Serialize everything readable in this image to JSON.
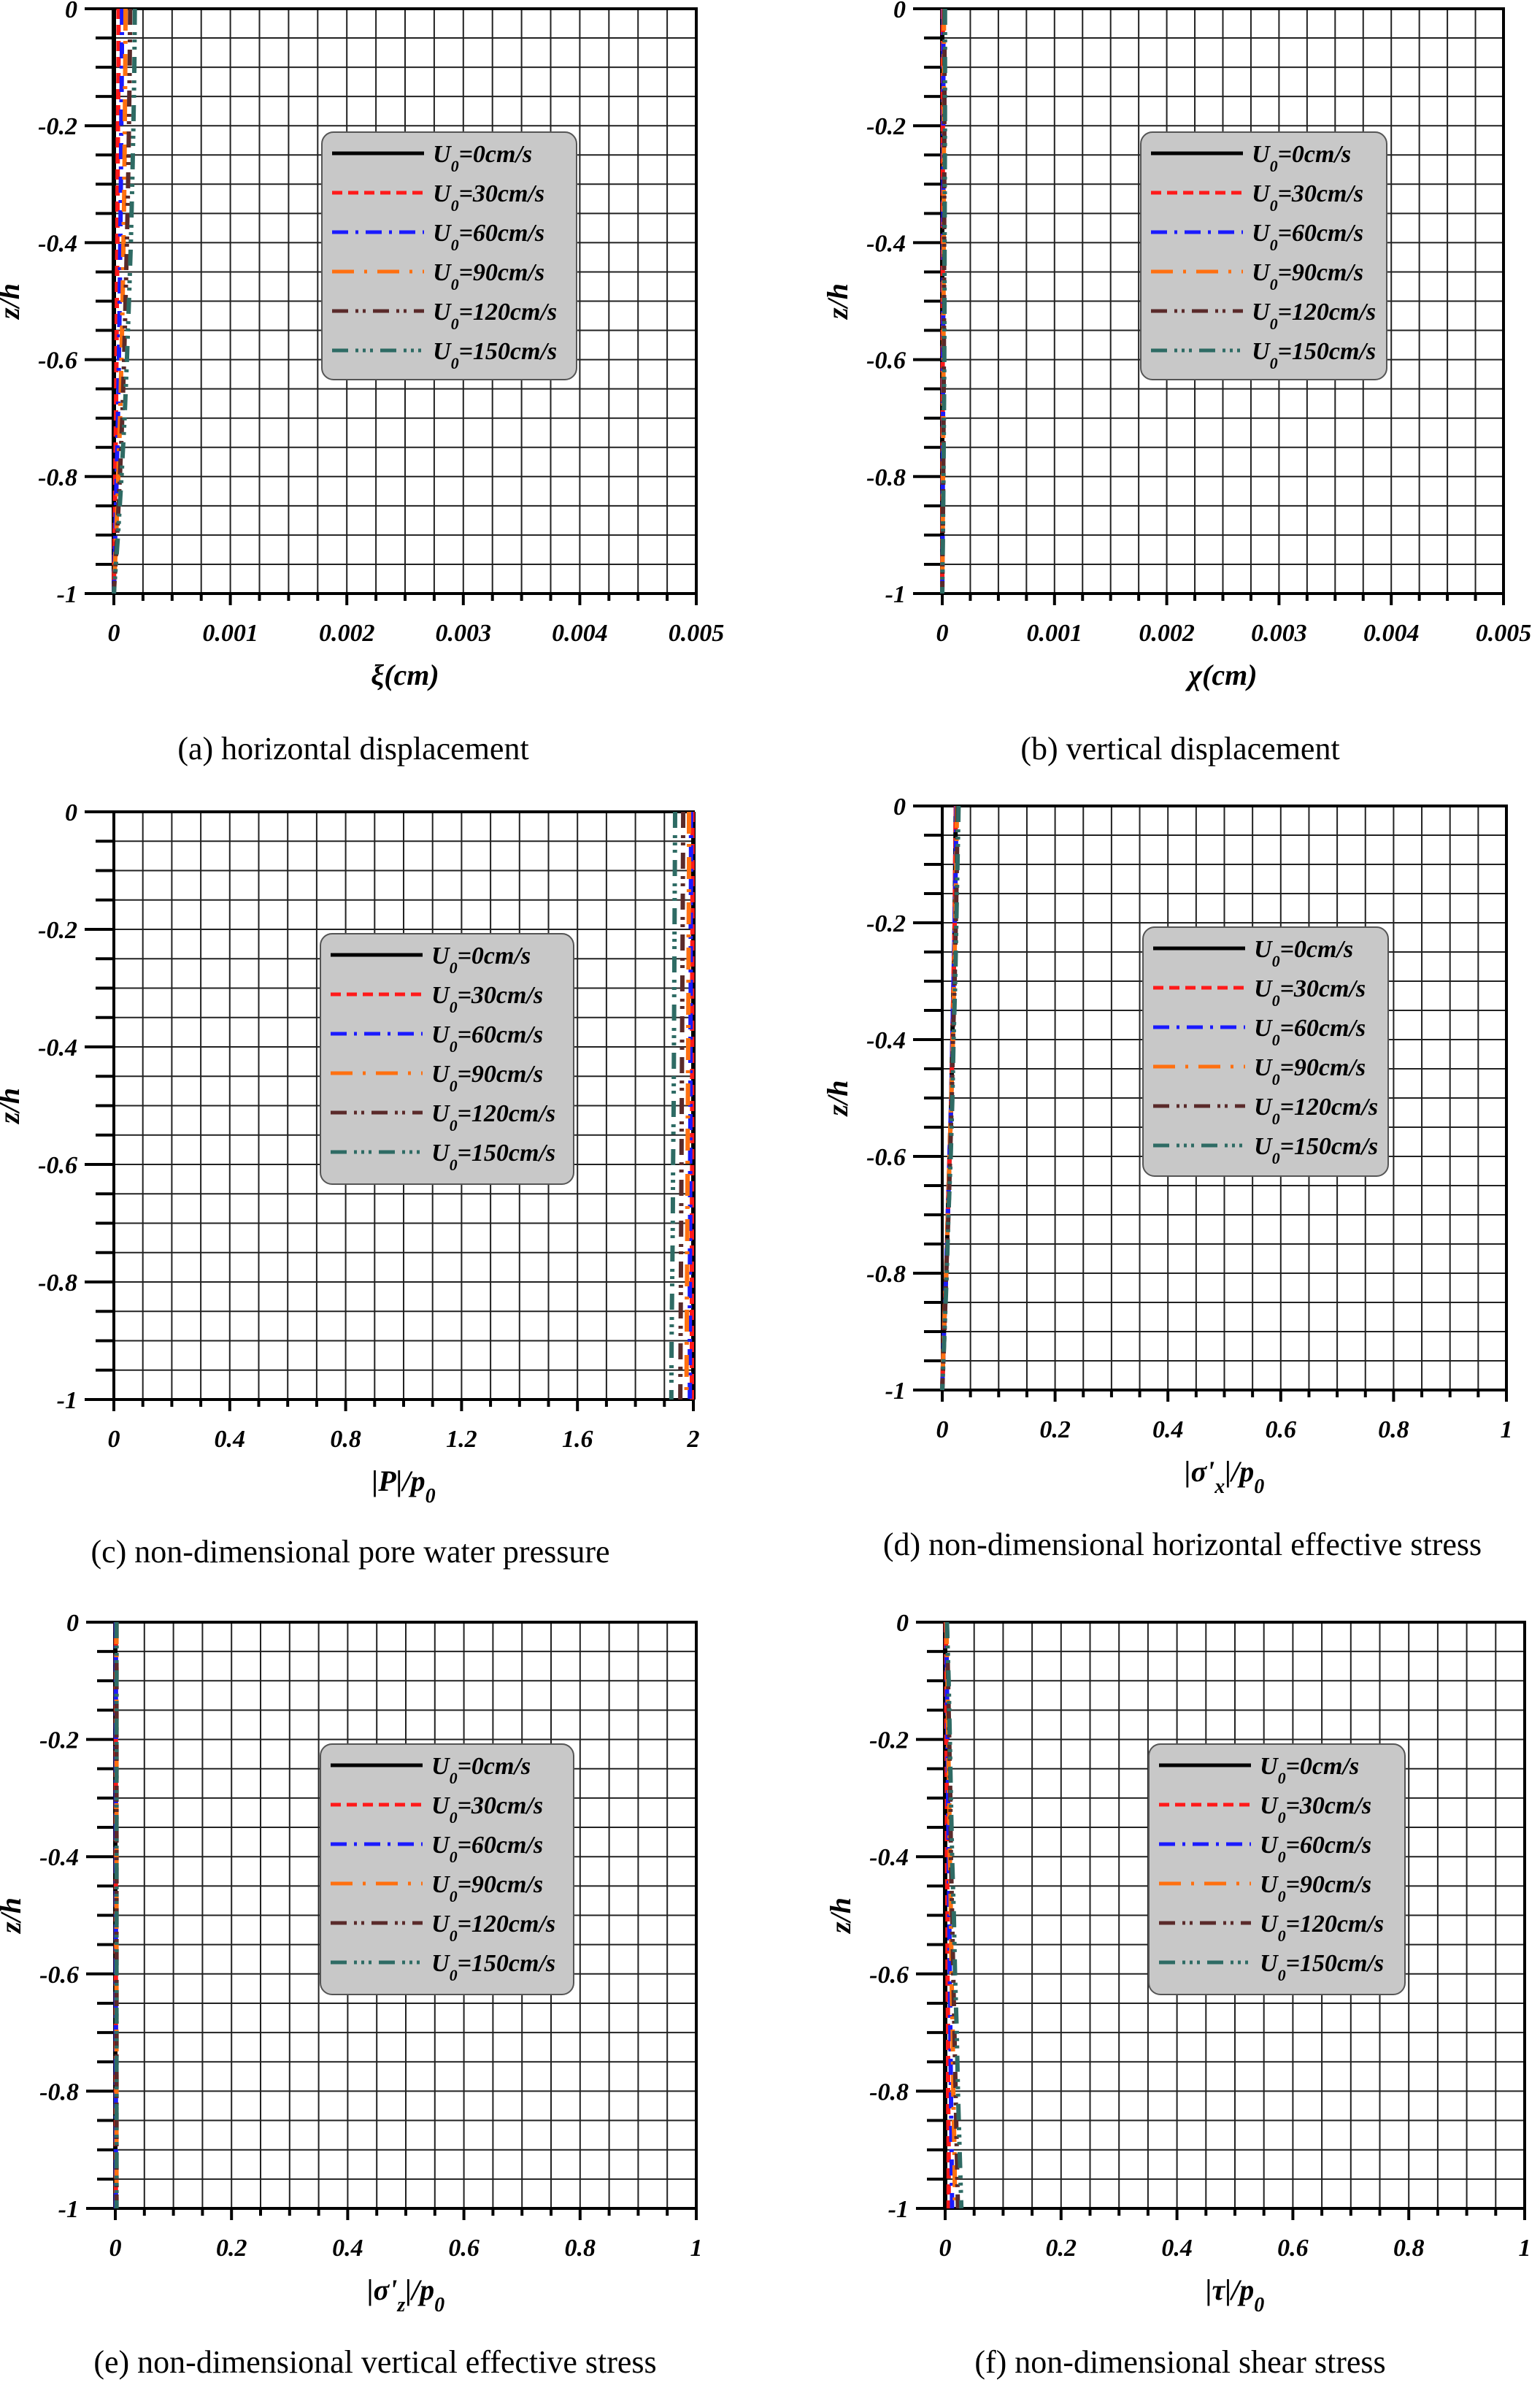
{
  "chart_data": [
    {
      "type": "line",
      "caption": "(a) horizontal displacement",
      "xlabel": [
        {
          "t": "ξ",
          "sub": false
        },
        {
          "t": "(cm)",
          "sub": false
        }
      ],
      "ylabel": "z/h",
      "xlim": [
        0,
        0.005
      ],
      "ylim": [
        -1,
        0
      ],
      "xticks": [
        "0",
        "0.001",
        "0.002",
        "0.003",
        "0.004",
        "0.005"
      ],
      "yticks": [
        "0",
        "-0.2",
        "-0.4",
        "-0.6",
        "-0.8",
        "-1"
      ],
      "grid": true,
      "legend": "upper-center",
      "z": [
        0,
        -0.1,
        -0.2,
        -0.3,
        -0.4,
        -0.5,
        -0.6,
        -0.7,
        -0.8,
        -0.9,
        -1
      ],
      "series": [
        {
          "name": "U0=0cm/s",
          "values": [
            0,
            0,
            0,
            0,
            0,
            0,
            0,
            0,
            0,
            0,
            0
          ]
        },
        {
          "name": "U0=30cm/s",
          "values": [
            4e-05,
            4e-05,
            3.5e-05,
            3.2e-05,
            3e-05,
            2.6e-05,
            2.2e-05,
            1.8e-05,
            1.2e-05,
            6e-06,
            0
          ]
        },
        {
          "name": "U0=60cm/s",
          "values": [
            7e-05,
            6.8e-05,
            6.4e-05,
            6e-05,
            5.5e-05,
            5e-05,
            4.3e-05,
            3.5e-05,
            2.4e-05,
            1.2e-05,
            0
          ]
        },
        {
          "name": "U0=90cm/s",
          "values": [
            0.0001,
            9.8e-05,
            9.4e-05,
            9e-05,
            8.3e-05,
            7.5e-05,
            6.5e-05,
            5.3e-05,
            3.8e-05,
            2e-05,
            0
          ]
        },
        {
          "name": "U0=120cm/s",
          "values": [
            0.00014,
            0.000136,
            0.00013,
            0.000122,
            0.000112,
            0.0001,
            8.8e-05,
            7.2e-05,
            5.2e-05,
            2.8e-05,
            0
          ]
        },
        {
          "name": "U0=150cm/s",
          "values": [
            0.00018,
            0.000176,
            0.000168,
            0.000158,
            0.000146,
            0.00013,
            0.000112,
            9.2e-05,
            6.6e-05,
            3.6e-05,
            0
          ]
        }
      ]
    },
    {
      "type": "line",
      "caption": "(b) vertical displacement",
      "xlabel": [
        {
          "t": "χ",
          "sub": false
        },
        {
          "t": "(cm)",
          "sub": false
        }
      ],
      "ylabel": "z/h",
      "xlim": [
        0,
        0.005
      ],
      "ylim": [
        -1,
        0
      ],
      "xticks": [
        "0",
        "0.001",
        "0.002",
        "0.003",
        "0.004",
        "0.005"
      ],
      "yticks": [
        "0",
        "-0.2",
        "-0.4",
        "-0.6",
        "-0.8",
        "-1"
      ],
      "grid": true,
      "legend": "upper-center",
      "z": [
        0,
        -0.1,
        -0.2,
        -0.3,
        -0.4,
        -0.5,
        -0.6,
        -0.7,
        -0.8,
        -0.9,
        -1
      ],
      "series": [
        {
          "name": "U0=0cm/s",
          "values": [
            0,
            0,
            0,
            0,
            0,
            0,
            0,
            0,
            0,
            0,
            0
          ]
        },
        {
          "name": "U0=30cm/s",
          "values": [
            5e-06,
            5e-06,
            5e-06,
            5e-06,
            5e-06,
            4e-06,
            4e-06,
            4e-06,
            3e-06,
            2e-06,
            0
          ]
        },
        {
          "name": "U0=60cm/s",
          "values": [
            1e-05,
            1e-05,
            1e-05,
            1e-05,
            9e-06,
            9e-06,
            8e-06,
            7e-06,
            5e-06,
            3e-06,
            0
          ]
        },
        {
          "name": "U0=90cm/s",
          "values": [
            1.5e-05,
            1.5e-05,
            1.4e-05,
            1.4e-05,
            1.3e-05,
            1.2e-05,
            1.1e-05,
            9e-06,
            7e-06,
            4e-06,
            0
          ]
        },
        {
          "name": "U0=120cm/s",
          "values": [
            2e-05,
            2e-05,
            1.9e-05,
            1.8e-05,
            1.7e-05,
            1.6e-05,
            1.4e-05,
            1.2e-05,
            9e-06,
            5e-06,
            0
          ]
        },
        {
          "name": "U0=150cm/s",
          "values": [
            2.5e-05,
            2.5e-05,
            2.4e-05,
            2.3e-05,
            2.1e-05,
            2e-05,
            1.8e-05,
            1.5e-05,
            1.1e-05,
            6e-06,
            0
          ]
        }
      ]
    },
    {
      "type": "line",
      "caption": "(c) non-dimensional pore water pressure",
      "xlabel": [
        {
          "t": "|P|/p",
          "sub": false
        },
        {
          "t": "0",
          "sub": true
        }
      ],
      "ylabel": "z/h",
      "xlim": [
        0,
        2
      ],
      "ylim": [
        -1,
        0
      ],
      "xticks": [
        "0",
        "0.4",
        "0.8",
        "1.2",
        "1.6",
        "2"
      ],
      "yticks": [
        "0",
        "-0.2",
        "-0.4",
        "-0.6",
        "-0.8",
        "-1"
      ],
      "grid": true,
      "legend": "upper-center",
      "z": [
        0,
        -0.1,
        -0.2,
        -0.3,
        -0.4,
        -0.5,
        -0.6,
        -0.7,
        -0.8,
        -0.9,
        -1
      ],
      "series": [
        {
          "name": "U0=0cm/s",
          "values": [
            2,
            2,
            2,
            2,
            2,
            2,
            2,
            2,
            2,
            2,
            2
          ]
        },
        {
          "name": "U0=30cm/s",
          "values": [
            1.997,
            1.997,
            1.997,
            1.996,
            1.996,
            1.996,
            1.996,
            1.995,
            1.995,
            1.995,
            1.995
          ]
        },
        {
          "name": "U0=60cm/s",
          "values": [
            1.992,
            1.992,
            1.991,
            1.991,
            1.99,
            1.99,
            1.989,
            1.989,
            1.988,
            1.988,
            1.988
          ]
        },
        {
          "name": "U0=90cm/s",
          "values": [
            1.985,
            1.985,
            1.984,
            1.983,
            1.982,
            1.981,
            1.98,
            1.979,
            1.978,
            1.977,
            1.976
          ]
        },
        {
          "name": "U0=120cm/s",
          "values": [
            1.965,
            1.964,
            1.963,
            1.962,
            1.961,
            1.96,
            1.959,
            1.958,
            1.957,
            1.956,
            1.955
          ]
        },
        {
          "name": "U0=150cm/s",
          "values": [
            1.937,
            1.936,
            1.935,
            1.934,
            1.933,
            1.932,
            1.93,
            1.929,
            1.927,
            1.925,
            1.924
          ]
        }
      ]
    },
    {
      "type": "line",
      "caption": "(d) non-dimensional horizontal effective stress",
      "xlabel": [
        {
          "t": "|σ'",
          "sub": false
        },
        {
          "t": "x",
          "sub": true
        },
        {
          "t": "|/p",
          "sub": false
        },
        {
          "t": "0",
          "sub": true
        }
      ],
      "ylabel": "z/h",
      "xlim": [
        0,
        1
      ],
      "ylim": [
        -1,
        0
      ],
      "xticks": [
        "0",
        "0.2",
        "0.4",
        "0.6",
        "0.8",
        "1"
      ],
      "yticks": [
        "0",
        "-0.2",
        "-0.4",
        "-0.6",
        "-0.8",
        "-1"
      ],
      "grid": true,
      "legend": "upper-center",
      "z": [
        0,
        -0.1,
        -0.2,
        -0.3,
        -0.4,
        -0.5,
        -0.6,
        -0.7,
        -0.8,
        -0.9,
        -1
      ],
      "series": [
        {
          "name": "U0=0cm/s",
          "values": [
            0.024,
            0.023,
            0.022,
            0.02,
            0.018,
            0.016,
            0.013,
            0.01,
            0.007,
            0.003,
            0
          ]
        },
        {
          "name": "U0=30cm/s",
          "values": [
            0.024,
            0.023,
            0.022,
            0.02,
            0.018,
            0.016,
            0.013,
            0.01,
            0.007,
            0.003,
            0
          ]
        },
        {
          "name": "U0=60cm/s",
          "values": [
            0.025,
            0.024,
            0.022,
            0.02,
            0.018,
            0.016,
            0.013,
            0.01,
            0.007,
            0.003,
            0
          ]
        },
        {
          "name": "U0=90cm/s",
          "values": [
            0.026,
            0.025,
            0.023,
            0.021,
            0.019,
            0.016,
            0.013,
            0.01,
            0.007,
            0.003,
            0
          ]
        },
        {
          "name": "U0=120cm/s",
          "values": [
            0.027,
            0.026,
            0.024,
            0.022,
            0.019,
            0.017,
            0.014,
            0.011,
            0.007,
            0.004,
            0
          ]
        },
        {
          "name": "U0=150cm/s",
          "values": [
            0.029,
            0.027,
            0.025,
            0.023,
            0.02,
            0.018,
            0.015,
            0.011,
            0.008,
            0.004,
            0
          ]
        }
      ]
    },
    {
      "type": "line",
      "caption": "(e) non-dimensional vertical effective stress",
      "xlabel": [
        {
          "t": "|σ'",
          "sub": false
        },
        {
          "t": "z",
          "sub": true
        },
        {
          "t": "|/p",
          "sub": false
        },
        {
          "t": "0",
          "sub": true
        }
      ],
      "ylabel": "z/h",
      "xlim": [
        0,
        1
      ],
      "ylim": [
        -1,
        0
      ],
      "xticks": [
        "0",
        "0.2",
        "0.4",
        "0.6",
        "0.8",
        "1"
      ],
      "yticks": [
        "0",
        "-0.2",
        "-0.4",
        "-0.6",
        "-0.8",
        "-1"
      ],
      "grid": true,
      "legend": "upper-center",
      "z": [
        0,
        -0.1,
        -0.2,
        -0.3,
        -0.4,
        -0.5,
        -0.6,
        -0.7,
        -0.8,
        -0.9,
        -1
      ],
      "series": [
        {
          "name": "U0=0cm/s",
          "values": [
            0,
            0,
            0,
            0,
            0,
            0,
            0,
            0,
            0,
            0,
            0
          ]
        },
        {
          "name": "U0=30cm/s",
          "values": [
            0.001,
            0.001,
            0.001,
            0.001,
            0.001,
            0.001,
            0.001,
            0.001,
            0.001,
            0.001,
            0.001
          ]
        },
        {
          "name": "U0=60cm/s",
          "values": [
            0.001,
            0.001,
            0.001,
            0.001,
            0.001,
            0.001,
            0.001,
            0.001,
            0.001,
            0.001,
            0.001
          ]
        },
        {
          "name": "U0=90cm/s",
          "values": [
            0.002,
            0.002,
            0.002,
            0.002,
            0.002,
            0.002,
            0.002,
            0.002,
            0.002,
            0.002,
            0.002
          ]
        },
        {
          "name": "U0=120cm/s",
          "values": [
            0.002,
            0.002,
            0.002,
            0.002,
            0.002,
            0.002,
            0.002,
            0.002,
            0.002,
            0.002,
            0.002
          ]
        },
        {
          "name": "U0=150cm/s",
          "values": [
            0.002,
            0.002,
            0.002,
            0.002,
            0.002,
            0.002,
            0.002,
            0.002,
            0.002,
            0.002,
            0.002
          ]
        }
      ]
    },
    {
      "type": "line",
      "caption": "(f) non-dimensional shear stress",
      "xlabel": [
        {
          "t": "|τ|/p",
          "sub": false
        },
        {
          "t": "0",
          "sub": true
        }
      ],
      "ylabel": "z/h",
      "xlim": [
        0,
        1
      ],
      "ylim": [
        -1,
        0
      ],
      "xticks": [
        "0",
        "0.2",
        "0.4",
        "0.6",
        "0.8",
        "1"
      ],
      "yticks": [
        "0",
        "-0.2",
        "-0.4",
        "-0.6",
        "-0.8",
        "-1"
      ],
      "grid": true,
      "legend": "upper-center",
      "z": [
        0,
        -0.1,
        -0.2,
        -0.3,
        -0.4,
        -0.5,
        -0.6,
        -0.7,
        -0.8,
        -0.9,
        -1
      ],
      "series": [
        {
          "name": "U0=0cm/s",
          "values": [
            0,
            0,
            0,
            0,
            0,
            0,
            0,
            0,
            0,
            0,
            0
          ]
        },
        {
          "name": "U0=30cm/s",
          "values": [
            0.001,
            0.002,
            0.002,
            0.003,
            0.003,
            0.004,
            0.004,
            0.005,
            0.005,
            0.006,
            0.006
          ]
        },
        {
          "name": "U0=60cm/s",
          "values": [
            0.002,
            0.003,
            0.004,
            0.005,
            0.006,
            0.007,
            0.008,
            0.009,
            0.01,
            0.011,
            0.012
          ]
        },
        {
          "name": "U0=90cm/s",
          "values": [
            0.002,
            0.004,
            0.005,
            0.007,
            0.008,
            0.01,
            0.011,
            0.013,
            0.014,
            0.016,
            0.017
          ]
        },
        {
          "name": "U0=120cm/s",
          "values": [
            0.003,
            0.005,
            0.007,
            0.009,
            0.01,
            0.012,
            0.014,
            0.016,
            0.018,
            0.02,
            0.022
          ]
        },
        {
          "name": "U0=150cm/s",
          "values": [
            0.003,
            0.006,
            0.008,
            0.01,
            0.012,
            0.015,
            0.017,
            0.02,
            0.022,
            0.025,
            0.028
          ]
        }
      ]
    }
  ],
  "legend_labels": [
    [
      {
        "t": "U",
        "sub": false
      },
      {
        "t": "0",
        "sub": true
      },
      {
        "t": "=0cm/s",
        "sub": false
      }
    ],
    [
      {
        "t": "U",
        "sub": false
      },
      {
        "t": "0",
        "sub": true
      },
      {
        "t": "=30cm/s",
        "sub": false
      }
    ],
    [
      {
        "t": "U",
        "sub": false
      },
      {
        "t": "0",
        "sub": true
      },
      {
        "t": "=60cm/s",
        "sub": false
      }
    ],
    [
      {
        "t": "U",
        "sub": false
      },
      {
        "t": "0",
        "sub": true
      },
      {
        "t": "=90cm/s",
        "sub": false
      }
    ],
    [
      {
        "t": "U",
        "sub": false
      },
      {
        "t": "0",
        "sub": true
      },
      {
        "t": "=120cm/s",
        "sub": false
      }
    ],
    [
      {
        "t": "U",
        "sub": false
      },
      {
        "t": "0",
        "sub": true
      },
      {
        "t": "=150cm/s",
        "sub": false
      }
    ]
  ],
  "series_colors": [
    "#000000",
    "#ff1a1a",
    "#1a1aff",
    "#ff7010",
    "#5a2a2a",
    "#2e6b64"
  ],
  "legend_bg": "#c8c8c8"
}
